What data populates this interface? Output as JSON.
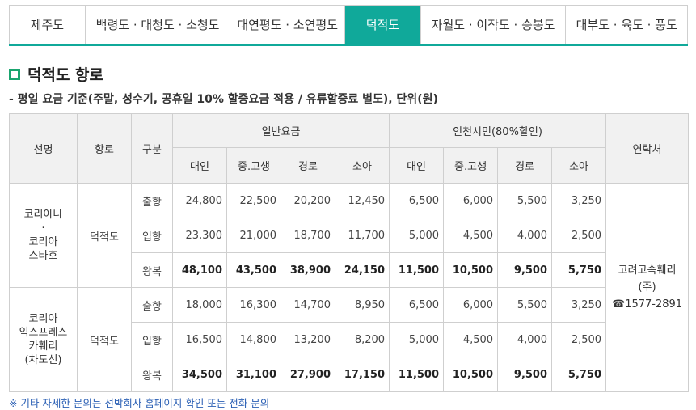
{
  "tabs": [
    {
      "label": "제주도",
      "active": false
    },
    {
      "label": "백령도 · 대청도 · 소청도",
      "active": false
    },
    {
      "label": "대연평도 · 소연평도",
      "active": false
    },
    {
      "label": "덕적도",
      "active": true
    },
    {
      "label": "자월도 · 이작도 · 승봉도",
      "active": false
    },
    {
      "label": "대부도 · 육도 · 풍도",
      "active": false
    }
  ],
  "section": {
    "title": "덕적도 항로",
    "note": "- 평일 요금 기준(주말, 성수기, 공휴일 10% 할증요금 적용 / 유류할증료 별도), 단위(원)"
  },
  "table": {
    "headers": {
      "line": "선명",
      "route": "항로",
      "type": "구분",
      "general": "일반요금",
      "incheon": "인천시민(80%할인)",
      "contact": "연락처",
      "sub": [
        "대인",
        "중.고생",
        "경로",
        "소아",
        "대인",
        "중.고생",
        "경로",
        "소아"
      ]
    },
    "groups": [
      {
        "ship_lines": [
          "코리아나",
          "·",
          "코리아",
          "스타호"
        ],
        "route": "덕적도",
        "rows": [
          {
            "type": "출항",
            "values": [
              "24,800",
              "22,500",
              "20,200",
              "12,450",
              "6,500",
              "6,000",
              "5,500",
              "3,250"
            ]
          },
          {
            "type": "입항",
            "values": [
              "23,300",
              "21,000",
              "18,700",
              "11,700",
              "5,000",
              "4,500",
              "4,000",
              "2,500"
            ]
          },
          {
            "type": "왕복",
            "values": [
              "48,100",
              "43,500",
              "38,900",
              "24,150",
              "11,500",
              "10,500",
              "9,500",
              "5,750"
            ]
          }
        ]
      },
      {
        "ship_lines": [
          "코리아",
          "익스프레스",
          "카훼리",
          "(차도선)"
        ],
        "route": "덕적도",
        "rows": [
          {
            "type": "출항",
            "values": [
              "18,000",
              "16,300",
              "14,700",
              "8,950",
              "6,500",
              "6,000",
              "5,500",
              "3,250"
            ]
          },
          {
            "type": "입항",
            "values": [
              "16,500",
              "14,800",
              "13,200",
              "8,200",
              "5,000",
              "4,500",
              "4,000",
              "2,500"
            ]
          },
          {
            "type": "왕복",
            "values": [
              "34,500",
              "31,100",
              "27,900",
              "17,150",
              "11,500",
              "10,500",
              "9,500",
              "5,750"
            ]
          }
        ]
      }
    ],
    "contact_lines": [
      "고려고속훼리",
      "(주)",
      "☎1577-2891"
    ]
  },
  "footnote": "※ 기타 자세한 문의는 선박회사 홈페이지 확인 또는 전화 문의",
  "colors": {
    "accent": "#10a99a",
    "heading_mark": "#1aa56f",
    "footnote": "#2a5fb4"
  }
}
